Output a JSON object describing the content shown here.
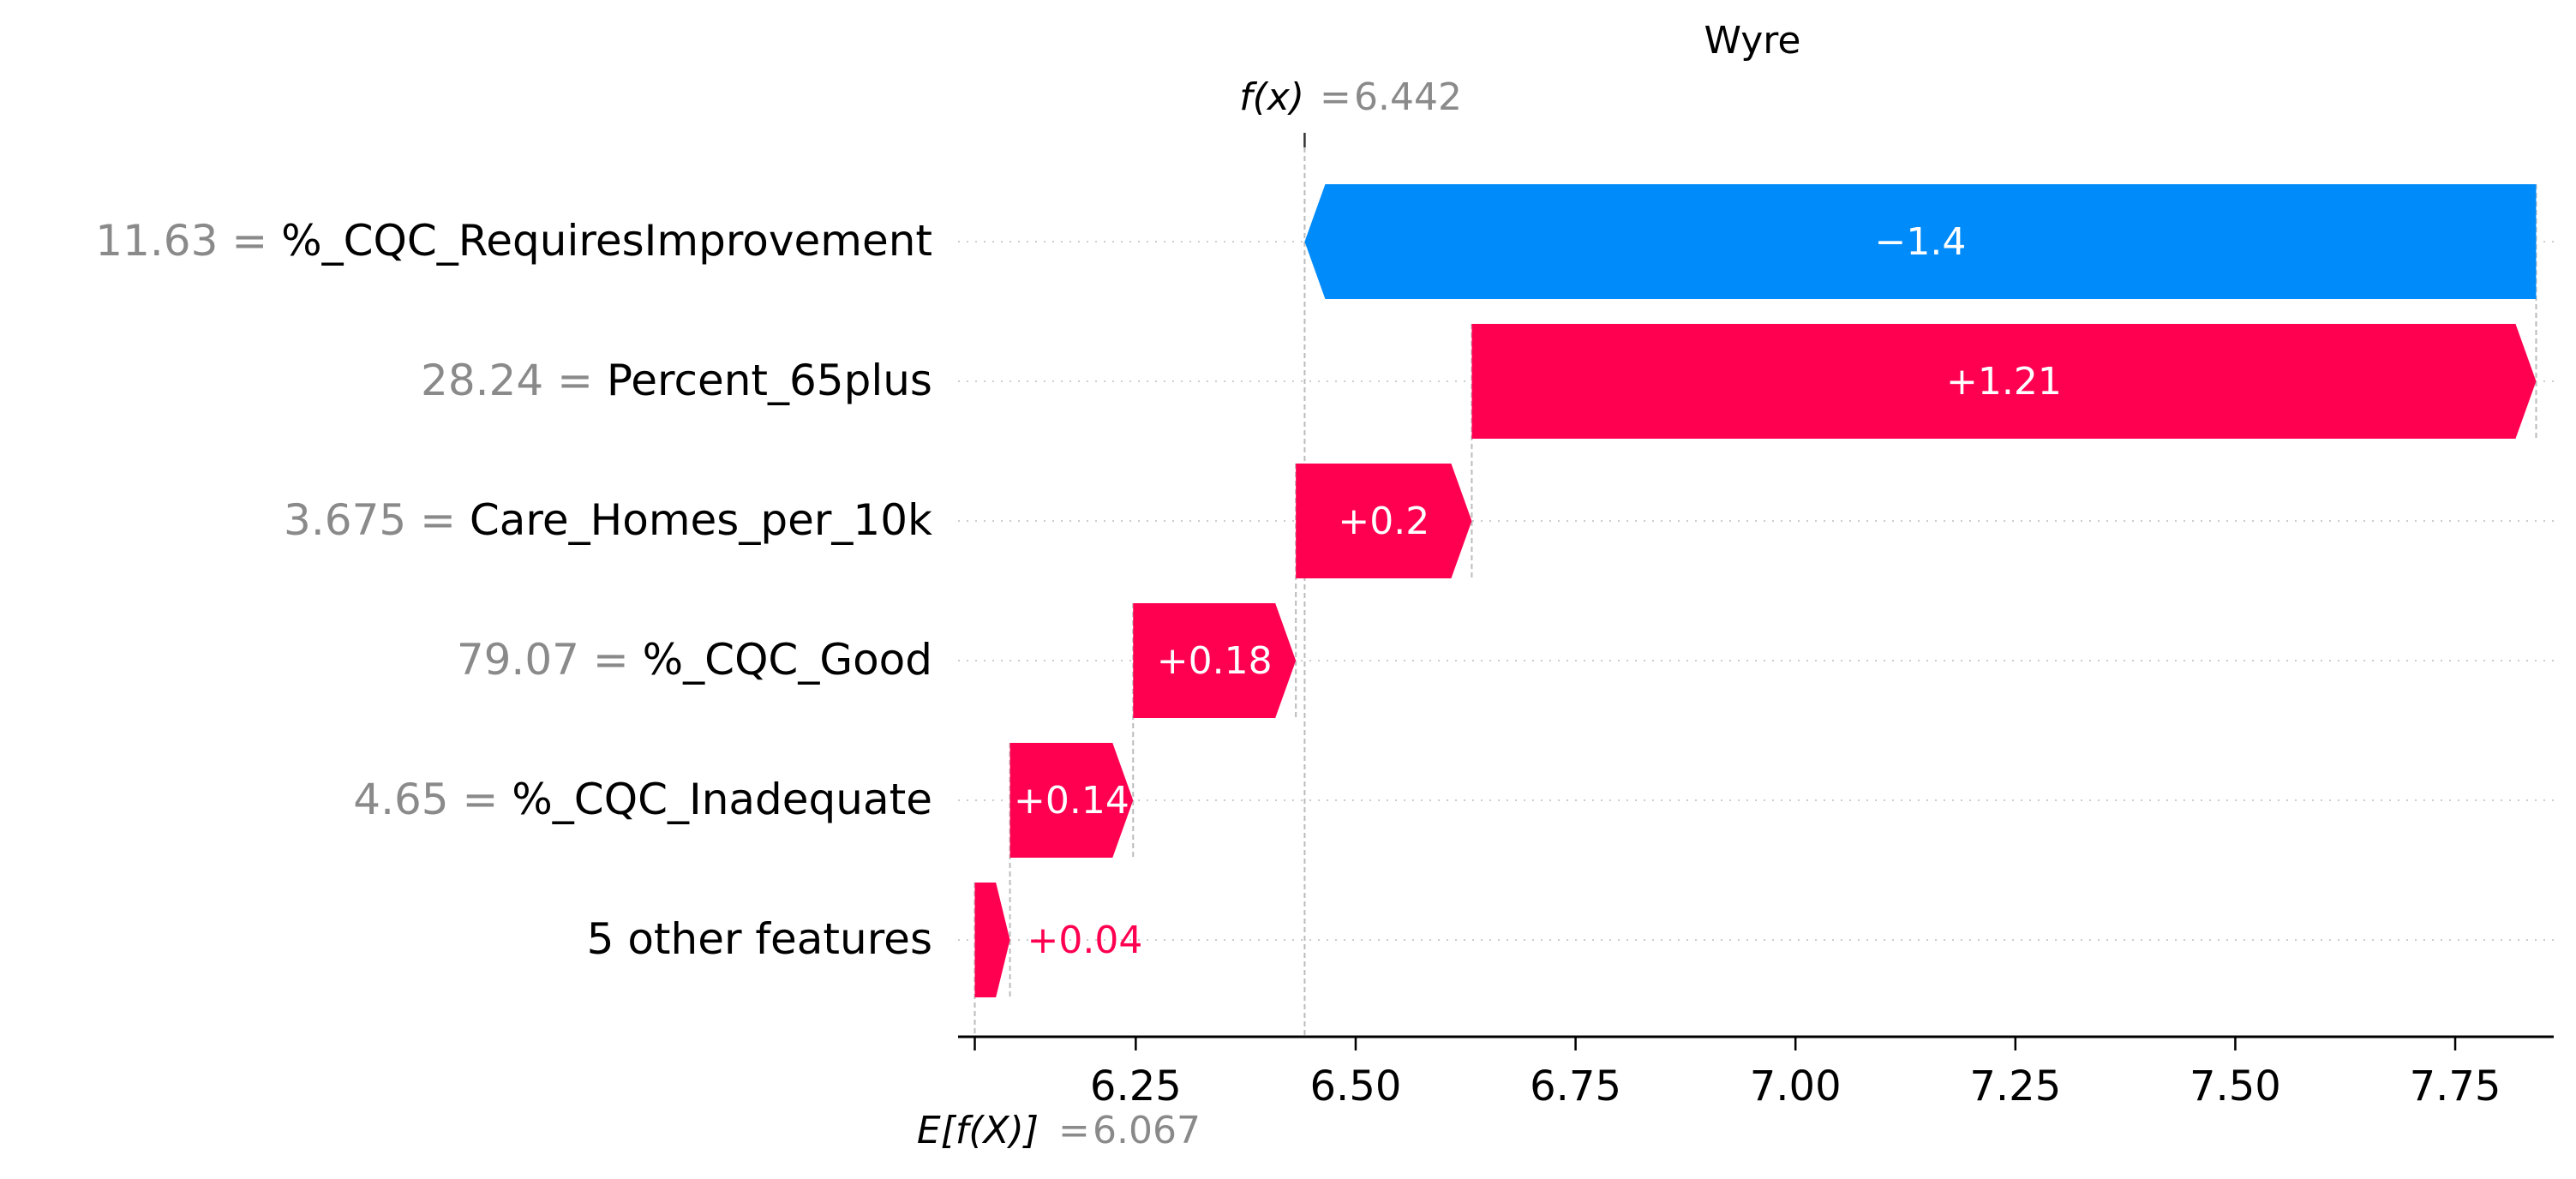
{
  "chart_data": {
    "type": "waterfall",
    "title": "Wyre",
    "fx": {
      "label": "f(x)",
      "value": "6.442"
    },
    "ex": {
      "label": "E[f(X)]",
      "value": "6.067"
    },
    "base_value": 6.067,
    "output_value": 6.442,
    "features": [
      {
        "name": "%_CQC_RequiresImprovement",
        "value": "11.63",
        "contribution": -1.4,
        "label": "−1.4",
        "start": 7.842,
        "end": 6.442
      },
      {
        "name": "Percent_65plus",
        "value": "28.24",
        "contribution": 1.21,
        "label": "+1.21",
        "start": 6.632,
        "end": 7.842
      },
      {
        "name": "Care_Homes_per_10k",
        "value": "3.675",
        "contribution": 0.2,
        "label": "+0.2",
        "start": 6.432,
        "end": 6.632
      },
      {
        "name": "%_CQC_Good",
        "value": "79.07",
        "contribution": 0.18,
        "label": "+0.18",
        "start": 6.247,
        "end": 6.432
      },
      {
        "name": "%_CQC_Inadequate",
        "value": "4.65",
        "contribution": 0.14,
        "label": "+0.14",
        "start": 6.107,
        "end": 6.247
      },
      {
        "name": "5 other features",
        "value": "",
        "contribution": 0.04,
        "label": "+0.04",
        "start": 6.067,
        "end": 6.107
      }
    ],
    "x_ticks": [
      6.25,
      6.5,
      6.75,
      7.0,
      7.25,
      7.5,
      7.75
    ],
    "x_tick_labels": [
      "6.25",
      "6.50",
      "6.75",
      "7.00",
      "7.25",
      "7.50",
      "7.75"
    ],
    "xlim": [
      6.048,
      7.862
    ],
    "colors": {
      "positive": "#ff0051",
      "negative": "#008bfb",
      "grid": "#cccccc",
      "muted": "#8a8a8a"
    }
  }
}
